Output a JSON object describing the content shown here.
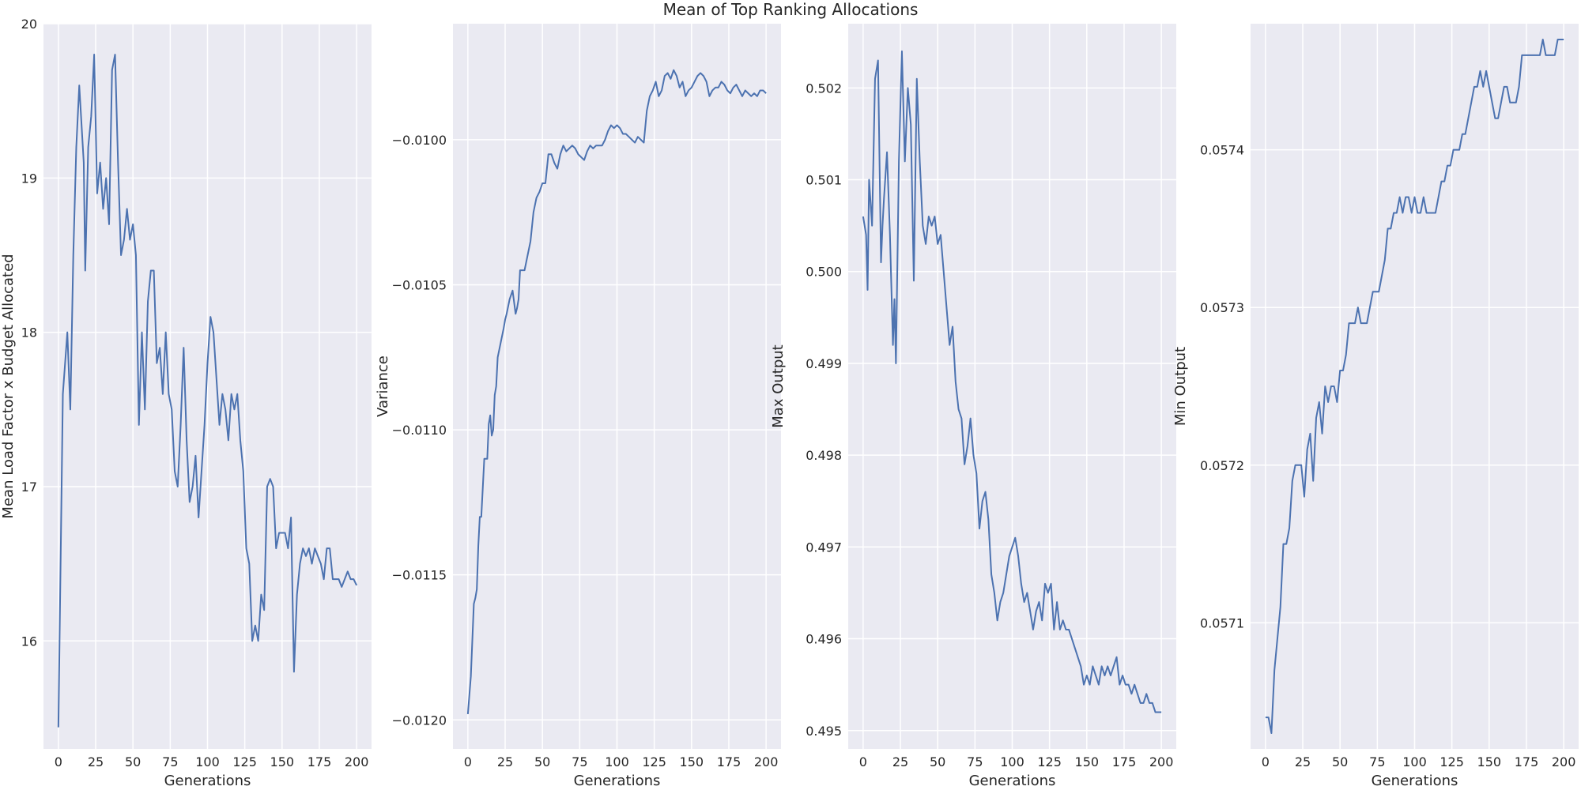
{
  "figure": {
    "title": "Mean of Top Ranking Allocations",
    "background": "#ffffff",
    "panel_background": "#eaeaf2",
    "grid_color": "#ffffff",
    "line_color": "#4c72b0",
    "text_color": "#262626"
  },
  "chart_data": [
    {
      "type": "line",
      "title": "",
      "xlabel": "Generations",
      "ylabel": "Mean Load Factor x Budget Allocated",
      "xlim": [
        -10,
        210
      ],
      "ylim": [
        15.3,
        20.0
      ],
      "xticks": [
        0,
        25,
        50,
        75,
        100,
        125,
        150,
        175,
        200
      ],
      "yticks": [
        16,
        17,
        18,
        19,
        20
      ],
      "ytick_labels": [
        "16",
        "17",
        "18",
        "19",
        "20"
      ],
      "grid": true,
      "legend": "none",
      "series": [
        {
          "x": [
            0,
            3,
            6,
            8,
            10,
            12,
            14,
            17,
            18,
            20,
            22,
            24,
            26,
            28,
            30,
            32,
            34,
            36,
            38,
            40,
            42,
            44,
            46,
            48,
            50,
            52,
            54,
            56,
            58,
            60,
            62,
            64,
            66,
            68,
            70,
            72,
            74,
            76,
            78,
            80,
            82,
            84,
            86,
            88,
            90,
            92,
            94,
            96,
            98,
            100,
            102,
            104,
            106,
            108,
            110,
            112,
            114,
            116,
            118,
            120,
            122,
            124,
            126,
            128,
            130,
            132,
            134,
            136,
            138,
            140,
            142,
            144,
            146,
            148,
            150,
            152,
            154,
            156,
            158,
            160,
            162,
            164,
            166,
            168,
            170,
            172,
            174,
            176,
            178,
            180,
            182,
            184,
            186,
            188,
            190,
            192,
            194,
            196,
            198,
            200
          ],
          "y": [
            15.44,
            17.6,
            18.0,
            17.5,
            18.5,
            19.2,
            19.6,
            19.1,
            18.4,
            19.2,
            19.4,
            19.8,
            18.9,
            19.1,
            18.8,
            19.0,
            18.7,
            19.7,
            19.8,
            19.1,
            18.5,
            18.6,
            18.8,
            18.6,
            18.7,
            18.5,
            17.4,
            18.0,
            17.5,
            18.2,
            18.4,
            18.4,
            17.8,
            17.9,
            17.6,
            18.0,
            17.6,
            17.5,
            17.1,
            17.0,
            17.4,
            17.9,
            17.3,
            16.9,
            17.0,
            17.2,
            16.8,
            17.1,
            17.4,
            17.8,
            18.1,
            18.0,
            17.7,
            17.4,
            17.6,
            17.5,
            17.3,
            17.6,
            17.5,
            17.6,
            17.3,
            17.1,
            16.6,
            16.5,
            16.0,
            16.1,
            16.0,
            16.3,
            16.2,
            17.0,
            17.05,
            17.0,
            16.6,
            16.7,
            16.7,
            16.7,
            16.6,
            16.8,
            15.8,
            16.3,
            16.5,
            16.6,
            16.55,
            16.6,
            16.5,
            16.6,
            16.55,
            16.5,
            16.4,
            16.6,
            16.6,
            16.4,
            16.4,
            16.4,
            16.35,
            16.4,
            16.45,
            16.4,
            16.4,
            16.36
          ]
        }
      ]
    },
    {
      "type": "line",
      "title": "",
      "xlabel": "Generations",
      "ylabel": "Variance",
      "xlim": [
        -10,
        210
      ],
      "ylim": [
        -0.0121,
        -0.0096
      ],
      "xticks": [
        0,
        25,
        50,
        75,
        100,
        125,
        150,
        175,
        200
      ],
      "yticks": [
        -0.012,
        -0.0115,
        -0.011,
        -0.0105,
        -0.01
      ],
      "ytick_labels": [
        "−0.0120",
        "−0.0115",
        "−0.0110",
        "−0.0105",
        "−0.0100"
      ],
      "grid": true,
      "legend": "none",
      "series": [
        {
          "x": [
            0,
            2,
            4,
            5,
            6,
            7,
            8,
            9,
            10,
            11,
            12,
            13,
            14,
            15,
            16,
            17,
            18,
            19,
            20,
            22,
            24,
            25,
            26,
            28,
            30,
            32,
            33,
            34,
            35,
            36,
            38,
            40,
            42,
            44,
            46,
            48,
            50,
            52,
            54,
            56,
            58,
            60,
            62,
            64,
            66,
            68,
            70,
            72,
            74,
            76,
            78,
            80,
            82,
            84,
            86,
            88,
            90,
            92,
            94,
            96,
            98,
            100,
            102,
            104,
            106,
            108,
            110,
            112,
            114,
            116,
            118,
            120,
            122,
            124,
            126,
            128,
            130,
            132,
            134,
            136,
            138,
            140,
            142,
            144,
            146,
            148,
            150,
            152,
            154,
            156,
            158,
            160,
            162,
            164,
            166,
            168,
            170,
            172,
            174,
            176,
            178,
            180,
            182,
            184,
            186,
            188,
            190,
            192,
            194,
            196,
            198,
            200
          ],
          "y": [
            -0.01198,
            -0.01185,
            -0.0116,
            -0.01158,
            -0.01155,
            -0.0114,
            -0.0113,
            -0.0113,
            -0.0112,
            -0.0111,
            -0.0111,
            -0.0111,
            -0.01098,
            -0.01095,
            -0.01102,
            -0.011,
            -0.01088,
            -0.01085,
            -0.01075,
            -0.0107,
            -0.01065,
            -0.01062,
            -0.0106,
            -0.01055,
            -0.01052,
            -0.0106,
            -0.01058,
            -0.01055,
            -0.01045,
            -0.01045,
            -0.01045,
            -0.0104,
            -0.01035,
            -0.01025,
            -0.0102,
            -0.01018,
            -0.01015,
            -0.01015,
            -0.01005,
            -0.01005,
            -0.01008,
            -0.0101,
            -0.01005,
            -0.01002,
            -0.01004,
            -0.01003,
            -0.01002,
            -0.01003,
            -0.01005,
            -0.01006,
            -0.01007,
            -0.01004,
            -0.01002,
            -0.01003,
            -0.01002,
            -0.01002,
            -0.01002,
            -0.01,
            -0.00997,
            -0.00995,
            -0.00996,
            -0.00995,
            -0.00996,
            -0.00998,
            -0.00998,
            -0.00999,
            -0.01,
            -0.01001,
            -0.00999,
            -0.01,
            -0.01001,
            -0.0099,
            -0.00985,
            -0.00983,
            -0.0098,
            -0.00985,
            -0.00983,
            -0.00978,
            -0.00977,
            -0.00979,
            -0.00976,
            -0.00978,
            -0.00982,
            -0.0098,
            -0.00985,
            -0.00983,
            -0.00982,
            -0.0098,
            -0.00978,
            -0.00977,
            -0.00978,
            -0.0098,
            -0.00985,
            -0.00983,
            -0.00982,
            -0.00982,
            -0.0098,
            -0.00981,
            -0.00983,
            -0.00984,
            -0.00982,
            -0.00981,
            -0.00983,
            -0.00985,
            -0.00983,
            -0.00984,
            -0.00985,
            -0.00984,
            -0.00985,
            -0.00983,
            -0.00983,
            -0.00984
          ]
        }
      ]
    },
    {
      "type": "line",
      "title": "",
      "xlabel": "Generations",
      "ylabel": "Max Output",
      "xlim": [
        -10,
        210
      ],
      "ylim": [
        0.4948,
        0.5027
      ],
      "xticks": [
        0,
        25,
        50,
        75,
        100,
        125,
        150,
        175,
        200
      ],
      "yticks": [
        0.495,
        0.496,
        0.497,
        0.498,
        0.499,
        0.5,
        0.501,
        0.502
      ],
      "ytick_labels": [
        "0.495",
        "0.496",
        "0.497",
        "0.498",
        "0.499",
        "0.500",
        "0.501",
        "0.502"
      ],
      "grid": true,
      "legend": "none",
      "series": [
        {
          "x": [
            0,
            2,
            3,
            4,
            6,
            8,
            10,
            12,
            13,
            14,
            16,
            18,
            20,
            21,
            22,
            24,
            26,
            28,
            30,
            32,
            34,
            36,
            38,
            40,
            42,
            44,
            46,
            48,
            50,
            52,
            54,
            56,
            58,
            60,
            62,
            64,
            66,
            68,
            70,
            72,
            74,
            76,
            78,
            80,
            82,
            84,
            86,
            88,
            90,
            92,
            94,
            96,
            98,
            100,
            102,
            104,
            106,
            108,
            110,
            112,
            114,
            116,
            118,
            120,
            122,
            124,
            126,
            128,
            130,
            132,
            134,
            136,
            138,
            140,
            142,
            144,
            146,
            148,
            150,
            152,
            154,
            156,
            158,
            160,
            162,
            164,
            166,
            168,
            170,
            172,
            174,
            176,
            178,
            180,
            182,
            184,
            186,
            188,
            190,
            192,
            194,
            196,
            198,
            200
          ],
          "y": [
            0.5006,
            0.5004,
            0.4998,
            0.501,
            0.5005,
            0.5021,
            0.5023,
            0.5001,
            0.5005,
            0.5008,
            0.5013,
            0.5004,
            0.4992,
            0.4997,
            0.499,
            0.5012,
            0.5024,
            0.5012,
            0.502,
            0.5016,
            0.4999,
            0.5021,
            0.5012,
            0.5005,
            0.5003,
            0.5006,
            0.5005,
            0.5006,
            0.5003,
            0.5004,
            0.5,
            0.4996,
            0.4992,
            0.4994,
            0.4988,
            0.4985,
            0.4984,
            0.4979,
            0.4981,
            0.4984,
            0.498,
            0.4978,
            0.4972,
            0.4975,
            0.4976,
            0.4973,
            0.4967,
            0.4965,
            0.4962,
            0.4964,
            0.4965,
            0.4967,
            0.4969,
            0.497,
            0.4971,
            0.4969,
            0.4966,
            0.4964,
            0.4965,
            0.4963,
            0.4961,
            0.4963,
            0.4964,
            0.4962,
            0.4966,
            0.4965,
            0.4966,
            0.4961,
            0.4964,
            0.4961,
            0.4962,
            0.4961,
            0.4961,
            0.496,
            0.4959,
            0.4958,
            0.4957,
            0.4955,
            0.4956,
            0.4955,
            0.4957,
            0.4956,
            0.4955,
            0.4957,
            0.4956,
            0.4957,
            0.4956,
            0.4957,
            0.4958,
            0.4955,
            0.4956,
            0.4955,
            0.4955,
            0.4954,
            0.4955,
            0.4954,
            0.4953,
            0.4953,
            0.4954,
            0.4953,
            0.4953,
            0.4952,
            0.4952,
            0.4952
          ]
        }
      ]
    },
    {
      "type": "line",
      "title": "",
      "xlabel": "Generations",
      "ylabel": "Min Output",
      "xlim": [
        -10,
        210
      ],
      "ylim": [
        0.05702,
        0.05748
      ],
      "xticks": [
        0,
        25,
        50,
        75,
        100,
        125,
        150,
        175,
        200
      ],
      "yticks": [
        0.0571,
        0.0572,
        0.0573,
        0.0574
      ],
      "ytick_labels": [
        "0.0571",
        "0.0572",
        "0.0573",
        "0.0574"
      ],
      "grid": true,
      "legend": "none",
      "series": [
        {
          "x": [
            0,
            2,
            4,
            6,
            8,
            10,
            12,
            14,
            16,
            18,
            20,
            22,
            24,
            26,
            28,
            30,
            32,
            34,
            36,
            38,
            40,
            42,
            44,
            46,
            48,
            50,
            52,
            54,
            56,
            58,
            60,
            62,
            64,
            66,
            68,
            70,
            72,
            74,
            76,
            78,
            80,
            82,
            84,
            86,
            88,
            90,
            92,
            94,
            96,
            98,
            100,
            102,
            104,
            106,
            108,
            110,
            112,
            114,
            116,
            118,
            120,
            122,
            124,
            126,
            128,
            130,
            132,
            134,
            136,
            138,
            140,
            142,
            144,
            146,
            148,
            150,
            152,
            154,
            156,
            158,
            160,
            162,
            164,
            166,
            168,
            170,
            172,
            174,
            176,
            178,
            180,
            182,
            184,
            186,
            188,
            190,
            192,
            194,
            196,
            198,
            200
          ],
          "y": [
            0.05704,
            0.05704,
            0.05703,
            0.05707,
            0.05709,
            0.05711,
            0.05715,
            0.05715,
            0.05716,
            0.05719,
            0.0572,
            0.0572,
            0.0572,
            0.05718,
            0.05721,
            0.05722,
            0.05719,
            0.05723,
            0.05724,
            0.05722,
            0.05725,
            0.05724,
            0.05725,
            0.05725,
            0.05724,
            0.05726,
            0.05726,
            0.05727,
            0.05729,
            0.05729,
            0.05729,
            0.0573,
            0.05729,
            0.05729,
            0.05729,
            0.0573,
            0.05731,
            0.05731,
            0.05731,
            0.05732,
            0.05733,
            0.05735,
            0.05735,
            0.05736,
            0.05736,
            0.05737,
            0.05736,
            0.05737,
            0.05737,
            0.05736,
            0.05737,
            0.05736,
            0.05736,
            0.05737,
            0.05736,
            0.05736,
            0.05736,
            0.05736,
            0.05737,
            0.05738,
            0.05738,
            0.05739,
            0.05739,
            0.0574,
            0.0574,
            0.0574,
            0.05741,
            0.05741,
            0.05742,
            0.05743,
            0.05744,
            0.05744,
            0.05745,
            0.05744,
            0.05745,
            0.05744,
            0.05743,
            0.05742,
            0.05742,
            0.05743,
            0.05744,
            0.05744,
            0.05743,
            0.05743,
            0.05743,
            0.05744,
            0.05746,
            0.05746,
            0.05746,
            0.05746,
            0.05746,
            0.05746,
            0.05746,
            0.05747,
            0.05746,
            0.05746,
            0.05746,
            0.05746,
            0.05747,
            0.05747,
            0.05747
          ]
        }
      ]
    }
  ]
}
